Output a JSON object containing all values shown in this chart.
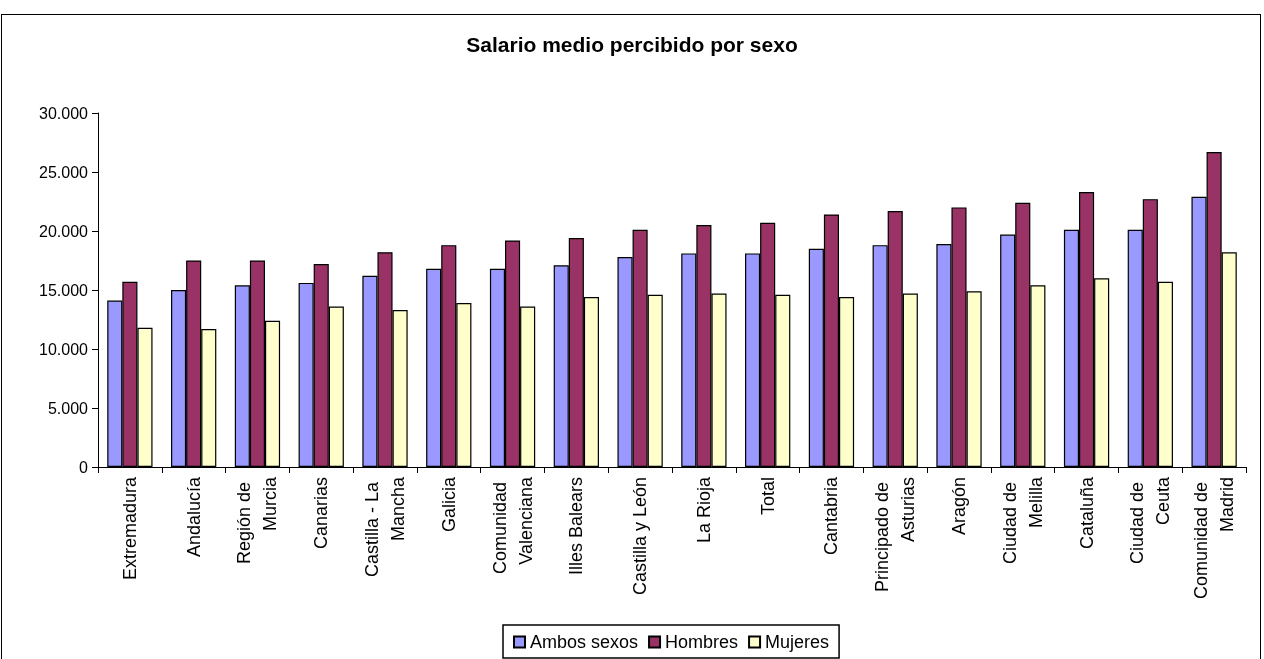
{
  "chart_data": {
    "type": "bar",
    "title": "Salario medio percibido por sexo",
    "categories": [
      "Extremadura",
      "Andalucía",
      "Región de Murcia",
      "Canarias",
      "Castilla - La Mancha",
      "Galicia",
      "Comunidad Valenciana",
      "Illes Balears",
      "Castilla y León",
      "La Rioja",
      "Total",
      "Cantabria",
      "Principado de Asturias",
      "Aragón",
      "Ciudad de Melilla",
      "Cataluña",
      "Ciudad de Ceuta",
      "Comunidad de Madrid"
    ],
    "series": [
      {
        "name": "Ambos sexos",
        "color": "#9999ff",
        "values": [
          14100,
          15000,
          15400,
          15600,
          16200,
          16800,
          16800,
          17100,
          17800,
          18100,
          18100,
          18500,
          18800,
          18900,
          19700,
          20100,
          20100,
          22900
        ]
      },
      {
        "name": "Hombres",
        "color": "#993366",
        "values": [
          15700,
          17500,
          17500,
          17200,
          18200,
          18800,
          19200,
          19400,
          20100,
          20500,
          20700,
          21400,
          21700,
          22000,
          22400,
          23300,
          22700,
          26700
        ]
      },
      {
        "name": "Mujeres",
        "color": "#ffffcc",
        "values": [
          11800,
          11700,
          12400,
          13600,
          13300,
          13900,
          13600,
          14400,
          14600,
          14700,
          14600,
          14400,
          14700,
          14900,
          15400,
          16000,
          15700,
          18200
        ]
      }
    ],
    "ylim": [
      0,
      30000
    ],
    "yticks": [
      0,
      {
        "value": 5000,
        "label": "5.000"
      },
      {
        "value": 10000,
        "label": "10.000"
      },
      {
        "value": 15000,
        "label": "15.000"
      },
      {
        "value": 20000,
        "label": "20.000"
      },
      {
        "value": 25000,
        "label": "25.000"
      },
      {
        "value": 30000,
        "label": "30.000"
      }
    ],
    "grid": false,
    "legend": "bottom"
  }
}
